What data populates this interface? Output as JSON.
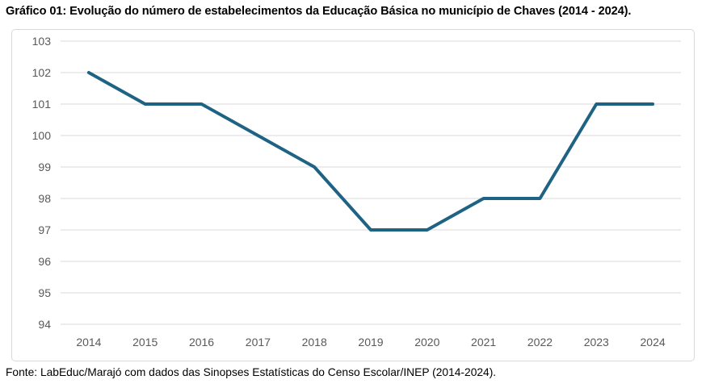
{
  "title": "Gráfico 01: Evolução do número de estabelecimentos da Educação Básica no município de Chaves (2014 - 2024).",
  "source": "Fonte: LabEduc/Marajó com dados das Sinopses Estatísticas do Censo Escolar/INEP (2014-2024).",
  "chart_data": {
    "type": "line",
    "title": "",
    "xlabel": "",
    "ylabel": "",
    "categories": [
      "2014",
      "2015",
      "2016",
      "2017",
      "2018",
      "2019",
      "2020",
      "2021",
      "2022",
      "2023",
      "2024"
    ],
    "series": [
      {
        "name": "Estabelecimentos da Educação Básica",
        "values": [
          102,
          101,
          101,
          100,
          99,
          97,
          97,
          98,
          98,
          101,
          101
        ]
      }
    ],
    "ylim": [
      94,
      103
    ],
    "y_ticks": [
      103,
      102,
      101,
      100,
      99,
      98,
      97,
      96,
      95,
      94
    ],
    "grid": true,
    "legend_position": "none",
    "colors": {
      "line": "#1F6384",
      "gridline": "#D9D9D9",
      "tick_label": "#595959",
      "plot_border": "#D9D9D9",
      "background": "#FFFFFF"
    }
  }
}
